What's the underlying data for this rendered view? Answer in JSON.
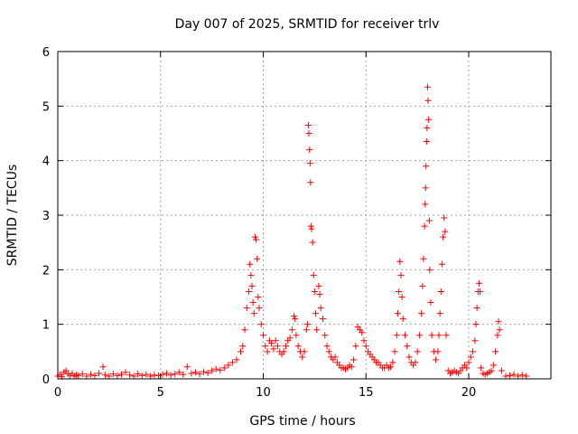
{
  "chart_data": {
    "type": "scatter",
    "title": "Day 007 of 2025, SRMTID for receiver trlv",
    "xlabel": "GPS time / hours",
    "ylabel": "SRMTID / TECUs",
    "xlim": [
      0,
      24
    ],
    "ylim": [
      0,
      6
    ],
    "xticks": [
      0,
      5,
      10,
      15,
      20
    ],
    "yticks": [
      0,
      1,
      2,
      3,
      4,
      5,
      6
    ],
    "xtick_labels": [
      "0",
      "5",
      "10",
      "15",
      "20"
    ],
    "ytick_labels": [
      "0",
      "1",
      "2",
      "3",
      "4",
      "5",
      "6"
    ],
    "grid": true,
    "marker": "+",
    "color": "#ff0000",
    "series": [
      {
        "points": [
          [
            0.0,
            0.05
          ],
          [
            0.1,
            0.08
          ],
          [
            0.2,
            0.04
          ],
          [
            0.3,
            0.12
          ],
          [
            0.4,
            0.15
          ],
          [
            0.5,
            0.09
          ],
          [
            0.6,
            0.06
          ],
          [
            0.7,
            0.1
          ],
          [
            0.8,
            0.05
          ],
          [
            0.9,
            0.07
          ],
          [
            1.0,
            0.06
          ],
          [
            1.2,
            0.09
          ],
          [
            1.4,
            0.05
          ],
          [
            1.6,
            0.08
          ],
          [
            1.8,
            0.06
          ],
          [
            2.0,
            0.1
          ],
          [
            2.2,
            0.22
          ],
          [
            2.3,
            0.07
          ],
          [
            2.5,
            0.05
          ],
          [
            2.7,
            0.09
          ],
          [
            2.9,
            0.06
          ],
          [
            3.1,
            0.08
          ],
          [
            3.3,
            0.12
          ],
          [
            3.5,
            0.07
          ],
          [
            3.7,
            0.05
          ],
          [
            3.9,
            0.09
          ],
          [
            4.1,
            0.06
          ],
          [
            4.3,
            0.08
          ],
          [
            4.5,
            0.05
          ],
          [
            4.7,
            0.07
          ],
          [
            4.9,
            0.06
          ],
          [
            5.1,
            0.08
          ],
          [
            5.3,
            0.1
          ],
          [
            5.5,
            0.07
          ],
          [
            5.7,
            0.09
          ],
          [
            5.9,
            0.12
          ],
          [
            6.1,
            0.08
          ],
          [
            6.3,
            0.22
          ],
          [
            6.5,
            0.1
          ],
          [
            6.7,
            0.12
          ],
          [
            6.9,
            0.09
          ],
          [
            7.1,
            0.13
          ],
          [
            7.3,
            0.11
          ],
          [
            7.5,
            0.15
          ],
          [
            7.7,
            0.18
          ],
          [
            7.9,
            0.16
          ],
          [
            8.1,
            0.2
          ],
          [
            8.3,
            0.25
          ],
          [
            8.5,
            0.3
          ],
          [
            8.7,
            0.35
          ],
          [
            8.9,
            0.5
          ],
          [
            9.0,
            0.6
          ],
          [
            9.1,
            0.9
          ],
          [
            9.2,
            1.3
          ],
          [
            9.3,
            1.6
          ],
          [
            9.35,
            2.1
          ],
          [
            9.4,
            1.9
          ],
          [
            9.45,
            1.7
          ],
          [
            9.5,
            1.4
          ],
          [
            9.55,
            1.2
          ],
          [
            9.6,
            2.6
          ],
          [
            9.65,
            2.55
          ],
          [
            9.7,
            2.2
          ],
          [
            9.75,
            1.5
          ],
          [
            9.8,
            1.3
          ],
          [
            9.9,
            1.0
          ],
          [
            10.0,
            0.8
          ],
          [
            10.1,
            0.6
          ],
          [
            10.2,
            0.5
          ],
          [
            10.3,
            0.7
          ],
          [
            10.4,
            0.65
          ],
          [
            10.5,
            0.55
          ],
          [
            10.6,
            0.7
          ],
          [
            10.7,
            0.6
          ],
          [
            10.8,
            0.5
          ],
          [
            10.9,
            0.45
          ],
          [
            11.0,
            0.5
          ],
          [
            11.1,
            0.6
          ],
          [
            11.2,
            0.7
          ],
          [
            11.3,
            0.75
          ],
          [
            11.4,
            0.9
          ],
          [
            11.5,
            1.15
          ],
          [
            11.55,
            1.1
          ],
          [
            11.6,
            0.8
          ],
          [
            11.7,
            0.6
          ],
          [
            11.8,
            0.5
          ],
          [
            11.9,
            0.4
          ],
          [
            12.0,
            0.5
          ],
          [
            12.1,
            0.9
          ],
          [
            12.15,
            1.0
          ],
          [
            12.2,
            4.65
          ],
          [
            12.22,
            4.5
          ],
          [
            12.25,
            4.2
          ],
          [
            12.28,
            3.95
          ],
          [
            12.3,
            3.6
          ],
          [
            12.32,
            2.8
          ],
          [
            12.35,
            2.75
          ],
          [
            12.4,
            2.5
          ],
          [
            12.45,
            1.9
          ],
          [
            12.5,
            1.6
          ],
          [
            12.55,
            1.2
          ],
          [
            12.6,
            0.9
          ],
          [
            12.7,
            1.7
          ],
          [
            12.75,
            1.55
          ],
          [
            12.8,
            1.3
          ],
          [
            12.9,
            1.1
          ],
          [
            13.0,
            0.8
          ],
          [
            13.1,
            0.6
          ],
          [
            13.2,
            0.5
          ],
          [
            13.3,
            0.4
          ],
          [
            13.4,
            0.35
          ],
          [
            13.5,
            0.4
          ],
          [
            13.6,
            0.3
          ],
          [
            13.7,
            0.25
          ],
          [
            13.8,
            0.2
          ],
          [
            13.9,
            0.2
          ],
          [
            14.0,
            0.18
          ],
          [
            14.1,
            0.2
          ],
          [
            14.2,
            0.25
          ],
          [
            14.3,
            0.22
          ],
          [
            14.4,
            0.35
          ],
          [
            14.5,
            0.6
          ],
          [
            14.6,
            0.95
          ],
          [
            14.7,
            0.9
          ],
          [
            14.8,
            0.85
          ],
          [
            14.9,
            0.7
          ],
          [
            15.0,
            0.6
          ],
          [
            15.1,
            0.5
          ],
          [
            15.2,
            0.45
          ],
          [
            15.3,
            0.4
          ],
          [
            15.4,
            0.35
          ],
          [
            15.5,
            0.3
          ],
          [
            15.6,
            0.3
          ],
          [
            15.7,
            0.25
          ],
          [
            15.8,
            0.2
          ],
          [
            15.9,
            0.2
          ],
          [
            16.0,
            0.25
          ],
          [
            16.1,
            0.2
          ],
          [
            16.2,
            0.22
          ],
          [
            16.3,
            0.3
          ],
          [
            16.4,
            0.5
          ],
          [
            16.5,
            0.8
          ],
          [
            16.55,
            1.2
          ],
          [
            16.6,
            1.6
          ],
          [
            16.65,
            2.15
          ],
          [
            16.7,
            1.9
          ],
          [
            16.75,
            1.5
          ],
          [
            16.8,
            1.1
          ],
          [
            16.9,
            0.8
          ],
          [
            17.0,
            0.6
          ],
          [
            17.1,
            0.4
          ],
          [
            17.2,
            0.3
          ],
          [
            17.3,
            0.25
          ],
          [
            17.4,
            0.3
          ],
          [
            17.5,
            0.5
          ],
          [
            17.6,
            0.8
          ],
          [
            17.7,
            1.2
          ],
          [
            17.75,
            1.7
          ],
          [
            17.8,
            2.2
          ],
          [
            17.85,
            2.8
          ],
          [
            17.88,
            3.2
          ],
          [
            17.9,
            3.5
          ],
          [
            17.92,
            3.9
          ],
          [
            17.95,
            4.35
          ],
          [
            17.97,
            4.6
          ],
          [
            18.0,
            5.35
          ],
          [
            18.02,
            5.1
          ],
          [
            18.05,
            4.75
          ],
          [
            18.08,
            2.9
          ],
          [
            18.1,
            2.0
          ],
          [
            18.15,
            1.4
          ],
          [
            18.2,
            0.8
          ],
          [
            18.3,
            0.5
          ],
          [
            18.4,
            0.35
          ],
          [
            18.5,
            0.5
          ],
          [
            18.55,
            0.8
          ],
          [
            18.6,
            1.2
          ],
          [
            18.65,
            1.6
          ],
          [
            18.7,
            2.1
          ],
          [
            18.75,
            2.6
          ],
          [
            18.8,
            2.95
          ],
          [
            18.85,
            2.7
          ],
          [
            18.9,
            0.8
          ],
          [
            19.0,
            0.15
          ],
          [
            19.1,
            0.1
          ],
          [
            19.2,
            0.12
          ],
          [
            19.3,
            0.15
          ],
          [
            19.4,
            0.12
          ],
          [
            19.5,
            0.1
          ],
          [
            19.6,
            0.15
          ],
          [
            19.7,
            0.2
          ],
          [
            19.8,
            0.25
          ],
          [
            19.9,
            0.2
          ],
          [
            20.0,
            0.3
          ],
          [
            20.1,
            0.4
          ],
          [
            20.2,
            0.5
          ],
          [
            20.3,
            0.7
          ],
          [
            20.35,
            1.0
          ],
          [
            20.4,
            1.3
          ],
          [
            20.45,
            1.6
          ],
          [
            20.5,
            1.75
          ],
          [
            20.55,
            1.6
          ],
          [
            20.6,
            0.2
          ],
          [
            20.7,
            0.1
          ],
          [
            20.8,
            0.08
          ],
          [
            20.9,
            0.1
          ],
          [
            21.0,
            0.12
          ],
          [
            21.1,
            0.15
          ],
          [
            21.2,
            0.25
          ],
          [
            21.3,
            0.5
          ],
          [
            21.4,
            0.8
          ],
          [
            21.45,
            1.05
          ],
          [
            21.5,
            0.9
          ],
          [
            21.6,
            0.15
          ],
          [
            21.8,
            0.05
          ],
          [
            22.0,
            0.06
          ],
          [
            22.2,
            0.08
          ],
          [
            22.4,
            0.05
          ],
          [
            22.6,
            0.07
          ],
          [
            22.8,
            0.05
          ]
        ]
      }
    ]
  }
}
